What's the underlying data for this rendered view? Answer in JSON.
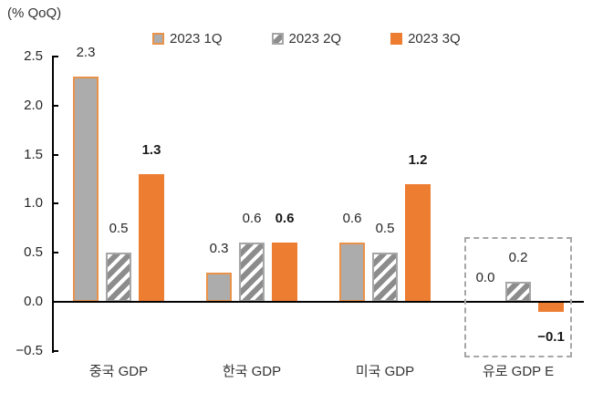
{
  "chart_data": {
    "type": "bar",
    "title": "",
    "unit": "(% QoQ)",
    "categories": [
      "중국 GDP",
      "한국 GDP",
      "미국 GDP",
      "유로 GDP E"
    ],
    "series": [
      {
        "key": "2023-1q",
        "name": "2023 1Q",
        "values": [
          2.3,
          0.3,
          0.6,
          0.0
        ],
        "style": "gray-solid-orange-border",
        "labels_bold": false
      },
      {
        "key": "2023-2q",
        "name": "2023 2Q",
        "values": [
          0.5,
          0.6,
          0.5,
          0.2
        ],
        "style": "diagonal-hatch",
        "labels_bold": false
      },
      {
        "key": "2023-3q",
        "name": "2023 3Q",
        "values": [
          1.3,
          0.6,
          1.2,
          -0.1
        ],
        "style": "orange-solid",
        "labels_bold": true
      }
    ],
    "ylim": [
      -0.5,
      2.5
    ],
    "yticks": [
      2.5,
      2.0,
      1.5,
      1.0,
      0.5,
      0.0,
      -0.5
    ],
    "grid": false,
    "legend_position": "top",
    "value_labels": "outside-end, one decimal",
    "annotations": [
      {
        "type": "dashed-box",
        "category": "유로 GDP E"
      }
    ],
    "colors": {
      "q1_fill": "#ACACAC",
      "q1_border": "#E8924A",
      "q2_stripe": "#8C8C8C",
      "q2_bg": "#FFFFFF",
      "q2_border": "#A6A6A6",
      "q3_fill": "#ED7D31",
      "axis": "#000000",
      "annotation_border": "#A6A6A6"
    }
  }
}
